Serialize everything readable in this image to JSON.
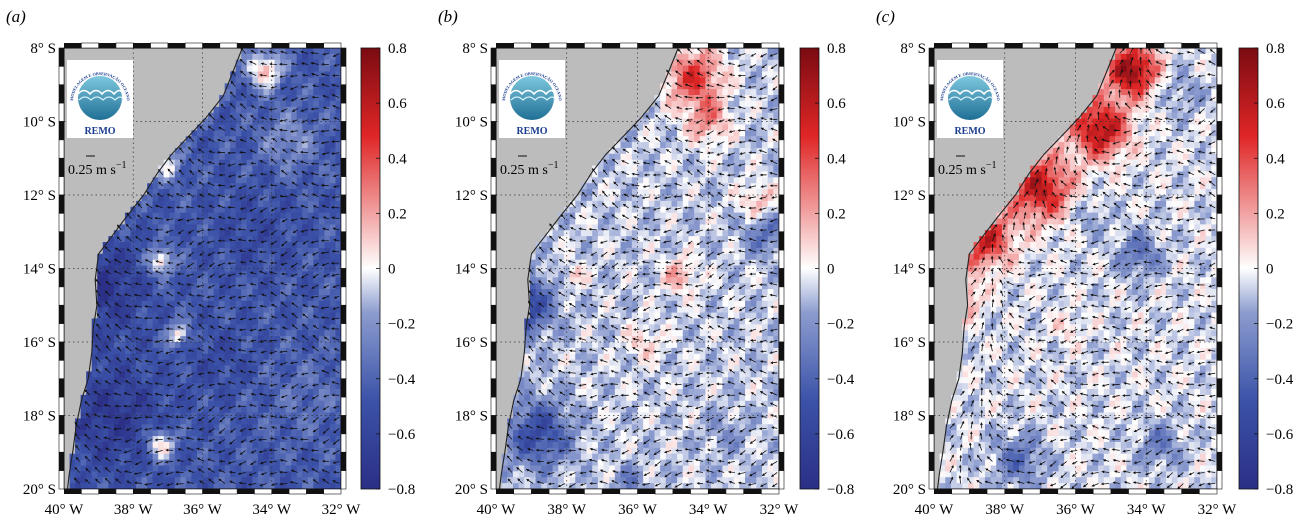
{
  "figure": {
    "panels": [
      {
        "label": "(a)",
        "scale_label": "0.25 m s",
        "scale_exp": "−1",
        "logo_text": "REMO",
        "logo_ring_text": "REDE DE MODELAGEM E OBSERVAÇÃO OCEANOGRÁFICA"
      },
      {
        "label": "(b)",
        "scale_label": "0.25 m s",
        "scale_exp": "−1",
        "logo_text": "REMO",
        "logo_ring_text": "REDE DE MODELAGEM E OBSERVAÇÃO OCEANOGRÁFICA"
      },
      {
        "label": "(c)",
        "scale_label": "0.25 m s",
        "scale_exp": "−1",
        "logo_text": "REMO",
        "logo_ring_text": "REDE DE MODELAGEM E OBSERVAÇÃO OCEANOGRÁFICA"
      }
    ]
  },
  "colors": {
    "negative": "#2b2f86",
    "zero": "#ffffff",
    "positive": "#7a0b12",
    "land": "#bcbcbc",
    "arrows": "#111111"
  },
  "chart_data": [
    {
      "type": "heatmap",
      "panel": "(a)",
      "xlabel": "",
      "ylabel": "",
      "xlim": [
        -40,
        -32
      ],
      "ylim": [
        -20,
        -8
      ],
      "x_ticks": [
        -40,
        -38,
        -36,
        -34,
        -32
      ],
      "y_ticks": [
        -20,
        -18,
        -16,
        -14,
        -12,
        -10,
        -8
      ],
      "x_tick_labels": [
        "40° W",
        "38° W",
        "36° W",
        "34° W",
        "32° W"
      ],
      "y_tick_labels": [
        "20° S",
        "18° S",
        "16° S",
        "14° S",
        "12° S",
        "10° S",
        "8° S"
      ],
      "colorbar": {
        "range": [
          -0.8,
          0.8
        ],
        "ticks": [
          -0.8,
          -0.6,
          -0.4,
          -0.2,
          0,
          0.2,
          0.4,
          0.6,
          0.8
        ],
        "tick_labels": [
          "−0.8",
          "−0.6",
          "−0.4",
          "−0.2",
          "0",
          "0.2",
          "0.4",
          "0.6",
          "0.8"
        ]
      },
      "grid": true,
      "quiver_reference_speed": 0.25,
      "field": {
        "background": -0.45,
        "features": [
          {
            "lon": -39.0,
            "lat": -14.5,
            "r": 1.2,
            "value": -0.75
          },
          {
            "lon": -38.6,
            "lat": -18.0,
            "r": 1.4,
            "value": -0.7
          },
          {
            "lon": -37.2,
            "lat": -13.8,
            "r": 0.35,
            "value": 0.15
          },
          {
            "lon": -37.2,
            "lat": -18.8,
            "r": 0.4,
            "value": 0.15
          },
          {
            "lon": -37.0,
            "lat": -11.2,
            "r": 0.4,
            "value": 0.0
          },
          {
            "lon": -36.7,
            "lat": -15.8,
            "r": 0.3,
            "value": 0.1
          },
          {
            "lon": -34.2,
            "lat": -8.6,
            "r": 0.5,
            "value": 0.2
          },
          {
            "lon": -33.5,
            "lat": -10.5,
            "r": 0.8,
            "value": -0.2
          },
          {
            "lon": -34.5,
            "lat": -13.0,
            "r": 1.2,
            "value": -0.55
          },
          {
            "lon": -33.0,
            "lat": -17.5,
            "r": 1.2,
            "value": -0.35
          },
          {
            "lon": -35.5,
            "lat": -16.5,
            "r": 1.0,
            "value": -0.55
          }
        ]
      }
    },
    {
      "type": "heatmap",
      "panel": "(b)",
      "xlabel": "",
      "ylabel": "",
      "xlim": [
        -40,
        -32
      ],
      "ylim": [
        -20,
        -8
      ],
      "x_ticks": [
        -40,
        -38,
        -36,
        -34,
        -32
      ],
      "y_ticks": [
        -20,
        -18,
        -16,
        -14,
        -12,
        -10,
        -8
      ],
      "x_tick_labels": [
        "40° W",
        "38° W",
        "36° W",
        "34° W",
        "32° W"
      ],
      "y_tick_labels": [
        "20° S",
        "18° S",
        "16° S",
        "14° S",
        "12° S",
        "10° S",
        "8° S"
      ],
      "colorbar": {
        "range": [
          -0.8,
          0.8
        ],
        "ticks": [
          -0.8,
          -0.6,
          -0.4,
          -0.2,
          0,
          0.2,
          0.4,
          0.6,
          0.8
        ],
        "tick_labels": [
          "−0.8",
          "−0.6",
          "−0.4",
          "−0.2",
          "0",
          "0.2",
          "0.4",
          "0.6",
          "0.8"
        ]
      },
      "grid": true,
      "quiver_reference_speed": 0.25,
      "field": {
        "background": -0.08,
        "features": [
          {
            "lon": -39.2,
            "lat": -15.0,
            "r": 0.8,
            "value": -0.6
          },
          {
            "lon": -38.8,
            "lat": -18.5,
            "r": 0.9,
            "value": -0.55
          },
          {
            "lon": -34.4,
            "lat": -8.8,
            "r": 0.8,
            "value": 0.45
          },
          {
            "lon": -34.0,
            "lat": -10.0,
            "r": 0.6,
            "value": 0.25
          },
          {
            "lon": -32.6,
            "lat": -12.2,
            "r": 0.5,
            "value": 0.2
          },
          {
            "lon": -32.4,
            "lat": -13.0,
            "r": 0.6,
            "value": -0.35
          },
          {
            "lon": -34.8,
            "lat": -14.2,
            "r": 0.5,
            "value": 0.2
          },
          {
            "lon": -37.8,
            "lat": -14.2,
            "r": 0.3,
            "value": 0.15
          },
          {
            "lon": -35.8,
            "lat": -16.0,
            "r": 0.5,
            "value": 0.12
          },
          {
            "lon": -36.2,
            "lat": -19.8,
            "r": 0.4,
            "value": -0.3
          },
          {
            "lon": -33.5,
            "lat": -18.5,
            "r": 0.6,
            "value": -0.2
          }
        ]
      }
    },
    {
      "type": "heatmap",
      "panel": "(c)",
      "xlabel": "",
      "ylabel": "",
      "xlim": [
        -40,
        -32
      ],
      "ylim": [
        -20,
        -8
      ],
      "x_ticks": [
        -40,
        -38,
        -36,
        -34,
        -32
      ],
      "y_ticks": [
        -20,
        -18,
        -16,
        -14,
        -12,
        -10,
        -8
      ],
      "x_tick_labels": [
        "40° W",
        "38° W",
        "36° W",
        "34° W",
        "32° W"
      ],
      "y_tick_labels": [
        "20° S",
        "18° S",
        "16° S",
        "14° S",
        "12° S",
        "10° S",
        "8° S"
      ],
      "colorbar": {
        "range": [
          -0.8,
          0.8
        ],
        "ticks": [
          -0.8,
          -0.6,
          -0.4,
          -0.2,
          0,
          0.2,
          0.4,
          0.6,
          0.8
        ],
        "tick_labels": [
          "−0.8",
          "−0.6",
          "−0.4",
          "−0.2",
          "0",
          "0.2",
          "0.4",
          "0.6",
          "0.8"
        ]
      },
      "grid": true,
      "quiver_reference_speed": 0.25,
      "field": {
        "background": -0.05,
        "features": [
          {
            "lon": -34.4,
            "lat": -8.6,
            "r": 0.7,
            "value": 0.75
          },
          {
            "lon": -35.3,
            "lat": -10.2,
            "r": 0.8,
            "value": 0.65
          },
          {
            "lon": -37.0,
            "lat": -11.8,
            "r": 0.9,
            "value": 0.6
          },
          {
            "lon": -38.6,
            "lat": -13.2,
            "r": 0.8,
            "value": 0.55
          },
          {
            "lon": -39.3,
            "lat": -14.8,
            "r": 0.5,
            "value": 0.45
          },
          {
            "lon": -34.2,
            "lat": -13.6,
            "r": 0.6,
            "value": -0.35
          },
          {
            "lon": -35.6,
            "lat": -12.6,
            "r": 0.5,
            "value": -0.2
          },
          {
            "lon": -33.0,
            "lat": -9.2,
            "r": 0.6,
            "value": -0.2
          },
          {
            "lon": -37.6,
            "lat": -19.2,
            "r": 0.7,
            "value": -0.35
          },
          {
            "lon": -33.6,
            "lat": -18.8,
            "r": 0.6,
            "value": -0.3
          },
          {
            "lon": -36.2,
            "lat": -15.6,
            "r": 0.4,
            "value": 0.1
          }
        ]
      }
    }
  ]
}
